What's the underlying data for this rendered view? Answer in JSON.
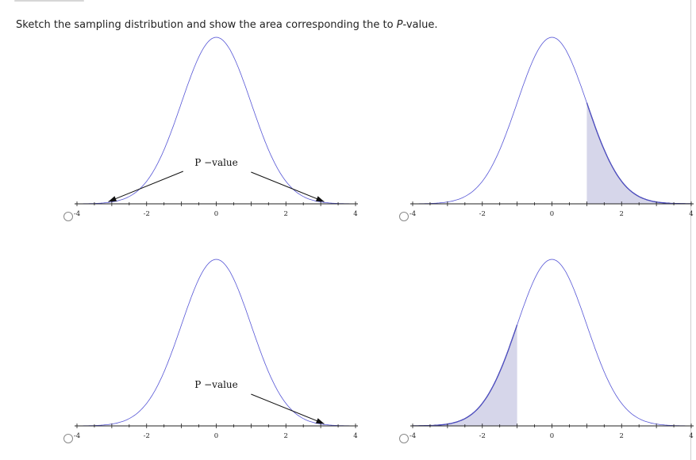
{
  "question": {
    "prefix": "Sketch the sampling distribution and show the area corresponding the to ",
    "pvalue_italic": "P",
    "suffix": "-value."
  },
  "options": [
    {
      "id": "A",
      "shading": "both-tails-arrows",
      "pvalue_label": "P −value",
      "shade_from": null,
      "shade_to": null,
      "arrows": [
        {
          "tail": "left",
          "target_z": -3.1
        },
        {
          "tail": "right",
          "target_z": 3.1
        }
      ]
    },
    {
      "id": "B",
      "shading": "right-tail",
      "pvalue_label": "",
      "shade_from": 1.0,
      "shade_to": 4.0,
      "arrows": []
    },
    {
      "id": "C",
      "shading": "right-tail-arrow",
      "pvalue_label": "P −value",
      "shade_from": null,
      "shade_to": null,
      "arrows": [
        {
          "tail": "right",
          "target_z": 3.1
        }
      ]
    },
    {
      "id": "D",
      "shading": "left-tail",
      "pvalue_label": "",
      "shade_from": -4.0,
      "shade_to": -1.0,
      "arrows": []
    }
  ],
  "axis": {
    "range": [
      -4,
      4
    ],
    "tick_labels": [
      "-4",
      "-2",
      "0",
      "2",
      "4"
    ]
  },
  "colors": {
    "curve": "#5656d6",
    "shade_fill": "#d6d6ea",
    "shade_edge": "#2a2a8a",
    "axis": "#222222",
    "arrow": "#111111"
  }
}
